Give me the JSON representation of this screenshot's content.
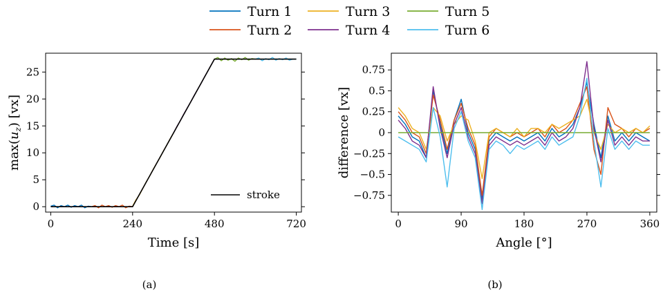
{
  "legend": [
    {
      "name": "Turn 1",
      "color": "#0072bd"
    },
    {
      "name": "Turn 2",
      "color": "#d95319"
    },
    {
      "name": "Turn 3",
      "color": "#edb120"
    },
    {
      "name": "Turn 4",
      "color": "#7e2f8e"
    },
    {
      "name": "Turn 5",
      "color": "#77ac30"
    },
    {
      "name": "Turn 6",
      "color": "#4dbeee"
    }
  ],
  "chart_data": [
    {
      "type": "line",
      "caption": "(a)",
      "xlabel": "Time [s]",
      "ylabel_main": "max(",
      "ylabel_var": "u",
      "ylabel_sub": "z",
      "ylabel_end": ") [vx]",
      "xlim": [
        -15,
        735
      ],
      "ylim": [
        -1,
        28.5
      ],
      "xticks": [
        0,
        240,
        480,
        720
      ],
      "yticks": [
        0,
        5,
        10,
        15,
        20,
        25
      ],
      "legend_position": "bottom-right",
      "stroke": {
        "name": "stroke",
        "color": "#000000",
        "x": [
          0,
          240,
          480,
          720
        ],
        "y": [
          0,
          0,
          27.4,
          27.4
        ]
      },
      "series": [
        {
          "color": "#0072bd",
          "x": [
            0,
            10,
            20,
            30,
            40,
            50,
            60,
            70,
            80,
            90,
            100,
            110,
            120
          ],
          "y": [
            0.1,
            0.3,
            -0.2,
            0.2,
            0,
            0.3,
            -0.1,
            0.2,
            0,
            0.3,
            -0.2,
            0.1,
            0
          ]
        },
        {
          "color": "#d95319",
          "x": [
            120,
            130,
            140,
            150,
            160,
            170,
            180,
            190,
            200,
            210,
            220,
            230,
            240
          ],
          "y": [
            0,
            0.2,
            -0.2,
            0.3,
            0,
            0.2,
            -0.1,
            0.2,
            0,
            0.3,
            -0.2,
            0.1,
            0
          ]
        },
        {
          "color": "#edb120",
          "x": [
            240,
            250,
            260,
            270,
            280,
            290,
            300,
            310,
            320,
            330,
            340,
            350,
            360
          ],
          "y": [
            0.1,
            1.3,
            2.2,
            3.4,
            4.6,
            5.7,
            6.9,
            8.0,
            9.1,
            10.3,
            11.4,
            12.6,
            13.7
          ]
        },
        {
          "color": "#7e2f8e",
          "x": [
            360,
            370,
            380,
            390,
            400,
            410,
            420,
            430,
            440,
            450,
            460,
            470,
            480
          ],
          "y": [
            13.7,
            14.9,
            16.0,
            17.2,
            18.3,
            19.4,
            20.6,
            21.7,
            22.8,
            24.0,
            25.1,
            26.3,
            27.4
          ]
        },
        {
          "color": "#77ac30",
          "x": [
            480,
            490,
            500,
            510,
            520,
            530,
            540,
            550,
            560,
            570,
            580,
            590,
            600
          ],
          "y": [
            27.4,
            27.7,
            27.1,
            27.6,
            27.2,
            27.5,
            27.0,
            27.6,
            27.3,
            27.7,
            27.2,
            27.5,
            27.4
          ]
        },
        {
          "color": "#4dbeee",
          "x": [
            600,
            610,
            620,
            630,
            640,
            650,
            660,
            670,
            680,
            690,
            700,
            710,
            720
          ],
          "y": [
            27.4,
            27.6,
            27.1,
            27.5,
            27.3,
            27.7,
            27.2,
            27.5,
            27.3,
            27.6,
            27.2,
            27.4,
            27.4
          ]
        }
      ]
    },
    {
      "type": "line",
      "caption": "(b)",
      "xlabel": "Angle [°]",
      "ylabel": "difference [vx]",
      "xlim": [
        -10,
        370
      ],
      "ylim": [
        -0.95,
        0.95
      ],
      "xticks": [
        0,
        90,
        180,
        270,
        360
      ],
      "yticks": [
        -0.75,
        -0.5,
        -0.25,
        0,
        0.25,
        0.5,
        0.75
      ],
      "ytick_labels": [
        "−0.75",
        "−0.5",
        "−0.25",
        "0",
        "0.25",
        "0.5",
        "0.75"
      ],
      "series": [
        {
          "name": "Turn 1",
          "color": "#0072bd",
          "x": [
            0,
            10,
            20,
            30,
            40,
            50,
            60,
            70,
            80,
            90,
            100,
            110,
            120,
            130,
            140,
            150,
            160,
            170,
            180,
            190,
            200,
            210,
            220,
            230,
            240,
            250,
            260,
            270,
            280,
            290,
            300,
            310,
            320,
            330,
            340,
            350,
            360
          ],
          "y": [
            0.2,
            0.1,
            -0.05,
            -0.1,
            -0.3,
            0.5,
            0.1,
            -0.25,
            0.15,
            0.4,
            0.0,
            -0.2,
            -0.8,
            -0.1,
            0.0,
            -0.05,
            -0.1,
            -0.05,
            -0.1,
            -0.05,
            0.0,
            -0.1,
            0.05,
            -0.05,
            0.0,
            0.1,
            0.3,
            0.6,
            0.1,
            -0.3,
            0.2,
            -0.1,
            0.0,
            -0.1,
            0.0,
            -0.05,
            -0.1
          ]
        },
        {
          "name": "Turn 2",
          "color": "#d95319",
          "x": [
            0,
            10,
            20,
            30,
            40,
            50,
            60,
            70,
            80,
            90,
            100,
            110,
            120,
            130,
            140,
            150,
            160,
            170,
            180,
            190,
            200,
            210,
            220,
            230,
            240,
            250,
            260,
            270,
            280,
            290,
            300,
            310,
            320,
            330,
            340,
            350,
            360
          ],
          "y": [
            0.25,
            0.15,
            0.0,
            -0.05,
            -0.25,
            0.45,
            0.15,
            -0.2,
            0.15,
            0.35,
            0.05,
            -0.15,
            -0.75,
            -0.05,
            0.05,
            0.0,
            -0.05,
            0.0,
            -0.05,
            0.0,
            0.05,
            -0.05,
            0.1,
            0.0,
            0.05,
            0.15,
            0.35,
            0.55,
            -0.2,
            -0.5,
            0.3,
            0.1,
            0.05,
            -0.05,
            0.05,
            0.0,
            0.05
          ]
        },
        {
          "name": "Turn 3",
          "color": "#edb120",
          "x": [
            0,
            10,
            20,
            30,
            40,
            50,
            60,
            70,
            80,
            90,
            100,
            110,
            120,
            130,
            140,
            150,
            160,
            170,
            180,
            190,
            200,
            210,
            220,
            230,
            240,
            250,
            260,
            270,
            280,
            290,
            300,
            310,
            320,
            330,
            340,
            350,
            360
          ],
          "y": [
            0.3,
            0.2,
            0.05,
            0.0,
            -0.2,
            0.3,
            0.2,
            -0.1,
            0.1,
            0.2,
            0.15,
            -0.1,
            -0.55,
            0.0,
            0.05,
            0.0,
            -0.05,
            0.05,
            -0.05,
            0.05,
            0.05,
            0.0,
            0.1,
            0.05,
            0.1,
            0.15,
            0.2,
            0.4,
            0.0,
            -0.2,
            0.1,
            0.0,
            0.05,
            0.0,
            0.05,
            0.0,
            0.08
          ]
        },
        {
          "name": "Turn 4",
          "color": "#7e2f8e",
          "x": [
            0,
            10,
            20,
            30,
            40,
            50,
            60,
            70,
            80,
            90,
            100,
            110,
            120,
            130,
            140,
            150,
            160,
            170,
            180,
            190,
            200,
            210,
            220,
            230,
            240,
            250,
            260,
            270,
            280,
            290,
            300,
            310,
            320,
            330,
            340,
            350,
            360
          ],
          "y": [
            0.15,
            0.05,
            -0.1,
            -0.15,
            -0.3,
            0.55,
            0.05,
            -0.3,
            0.1,
            0.3,
            -0.05,
            -0.25,
            -0.85,
            -0.15,
            -0.05,
            -0.1,
            -0.15,
            -0.1,
            -0.15,
            -0.1,
            -0.05,
            -0.15,
            0.0,
            -0.1,
            -0.05,
            0.05,
            0.3,
            0.85,
            0.05,
            -0.35,
            0.15,
            -0.15,
            -0.05,
            -0.15,
            -0.05,
            -0.1,
            -0.1
          ]
        },
        {
          "name": "Turn 5",
          "color": "#77ac30",
          "x": [
            0,
            360
          ],
          "y": [
            0,
            0
          ]
        },
        {
          "name": "Turn 6",
          "color": "#4dbeee",
          "x": [
            0,
            10,
            20,
            30,
            40,
            50,
            60,
            70,
            80,
            90,
            100,
            110,
            120,
            130,
            140,
            150,
            160,
            170,
            180,
            190,
            200,
            210,
            220,
            230,
            240,
            250,
            260,
            270,
            280,
            290,
            300,
            310,
            320,
            330,
            340,
            350,
            360
          ],
          "y": [
            -0.05,
            -0.1,
            -0.15,
            -0.2,
            -0.35,
            0.3,
            -0.05,
            -0.65,
            0.05,
            0.25,
            -0.1,
            -0.3,
            -0.92,
            -0.2,
            -0.1,
            -0.15,
            -0.25,
            -0.15,
            -0.2,
            -0.15,
            -0.1,
            -0.2,
            -0.05,
            -0.15,
            -0.1,
            -0.05,
            0.2,
            0.65,
            -0.1,
            -0.65,
            0.05,
            -0.2,
            -0.1,
            -0.2,
            -0.1,
            -0.15,
            -0.15
          ]
        }
      ]
    }
  ]
}
